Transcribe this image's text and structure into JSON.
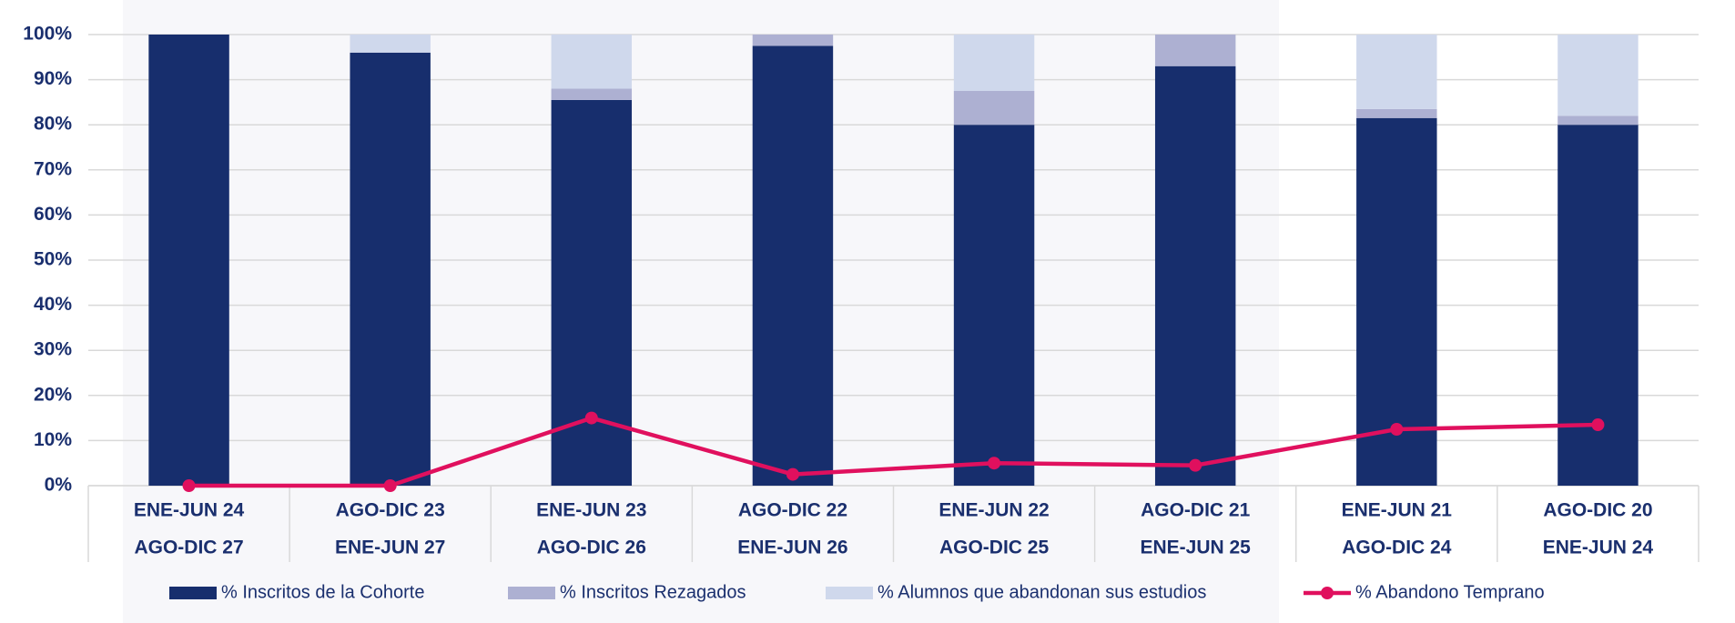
{
  "chart_data": {
    "type": "bar",
    "stacked": true,
    "categories": [
      [
        "ENE-JUN 24",
        "AGO-DIC 27"
      ],
      [
        "AGO-DIC 23",
        "ENE-JUN 27"
      ],
      [
        "ENE-JUN 23",
        "AGO-DIC 26"
      ],
      [
        "AGO-DIC 22",
        "ENE-JUN 26"
      ],
      [
        "ENE-JUN 22",
        "AGO-DIC 25"
      ],
      [
        "AGO-DIC 21",
        "ENE-JUN 25"
      ],
      [
        "ENE-JUN 21",
        "AGO-DIC 24"
      ],
      [
        "AGO-DIC 20",
        "ENE-JUN 24"
      ]
    ],
    "series": [
      {
        "name": "% Inscritos de la Cohorte",
        "color": "#172e6d",
        "values": [
          100,
          96,
          85.5,
          97.5,
          80,
          93,
          81.5,
          80
        ]
      },
      {
        "name": "% Inscritos Rezagados",
        "color": "#adb0d2",
        "values": [
          0,
          0,
          2.5,
          2.5,
          7.5,
          7,
          2,
          2
        ]
      },
      {
        "name": "% Alumnos que abandonan sus estudios",
        "color": "#cfd8ec",
        "values": [
          0,
          4,
          12,
          0,
          12.5,
          0,
          16.5,
          18
        ]
      },
      {
        "name": "% Abandono Temprano",
        "color": "#e0105e",
        "type": "line",
        "values": [
          0,
          0,
          15,
          2.5,
          5,
          4.5,
          12.5,
          13.5
        ]
      }
    ],
    "ylim": [
      0,
      100
    ],
    "yticks": [
      {
        "value": 0,
        "label": "0%"
      },
      {
        "value": 10,
        "label": "10%"
      },
      {
        "value": 20,
        "label": "20%"
      },
      {
        "value": 30,
        "label": "30%"
      },
      {
        "value": 40,
        "label": "40%"
      },
      {
        "value": 50,
        "label": "50%"
      },
      {
        "value": 60,
        "label": "60%"
      },
      {
        "value": 70,
        "label": "70%"
      },
      {
        "value": 80,
        "label": "80%"
      },
      {
        "value": 90,
        "label": "90%"
      },
      {
        "value": 100,
        "label": "100%"
      }
    ],
    "grid": true,
    "legend": "bottom"
  }
}
